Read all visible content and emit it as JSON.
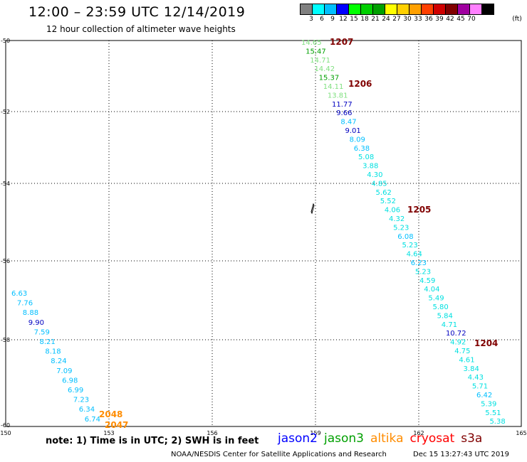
{
  "header": {
    "title": "12:00 – 23:59 UTC 12/14/2019",
    "subtitle": "12 hour collection of altimeter wave heights"
  },
  "legend": {
    "unit": "(ft)",
    "colors": [
      "#808080",
      "#00ffff",
      "#00bfff",
      "#0000ff",
      "#00ff00",
      "#00d000",
      "#00a000",
      "#ffff00",
      "#ffd000",
      "#ffa000",
      "#ff4000",
      "#d00000",
      "#800000",
      "#a000a0",
      "#ff80ff",
      "#000000"
    ],
    "labels": [
      "3",
      "6",
      "9",
      "12",
      "15",
      "18",
      "21",
      "24",
      "27",
      "30",
      "33",
      "36",
      "39",
      "42",
      "45",
      "70"
    ]
  },
  "map": {
    "x_ticks": [
      "150",
      "153",
      "156",
      "159",
      "162",
      "165"
    ],
    "y_ticks": [
      "-50",
      "-52",
      "-54",
      "-56",
      "-58",
      "-60"
    ],
    "track_left": [
      {
        "v": "6.63",
        "c": "#00bfff"
      },
      {
        "v": "7.76",
        "c": "#00bfff"
      },
      {
        "v": "8.88",
        "c": "#00bfff"
      },
      {
        "v": "9.90",
        "c": "#0000c0"
      },
      {
        "v": "7.59",
        "c": "#00bfff"
      },
      {
        "v": "8.21",
        "c": "#00bfff"
      },
      {
        "v": "8.18",
        "c": "#00bfff"
      },
      {
        "v": "8.24",
        "c": "#00bfff"
      },
      {
        "v": "7.09",
        "c": "#00bfff"
      },
      {
        "v": "6.98",
        "c": "#00bfff"
      },
      {
        "v": "6.99",
        "c": "#00bfff"
      },
      {
        "v": "7.23",
        "c": "#00bfff"
      },
      {
        "v": "6.34",
        "c": "#00bfff"
      },
      {
        "v": "6.74",
        "c": "#00bfff"
      }
    ],
    "track_right": [
      {
        "v": "14.65",
        "c": "#80e080"
      },
      {
        "v": "15.47",
        "c": "#00a000"
      },
      {
        "v": "14.71",
        "c": "#80e080"
      },
      {
        "v": "14.42",
        "c": "#80e080"
      },
      {
        "v": "15.37",
        "c": "#00a000"
      },
      {
        "v": "14.11",
        "c": "#80e080"
      },
      {
        "v": "13.81",
        "c": "#80e080"
      },
      {
        "v": "11.77",
        "c": "#0000c0"
      },
      {
        "v": "9.66",
        "c": "#0000c0"
      },
      {
        "v": "8.47",
        "c": "#00bfff"
      },
      {
        "v": "9.01",
        "c": "#0000c0"
      },
      {
        "v": "8.09",
        "c": "#00bfff"
      },
      {
        "v": "6.38",
        "c": "#00bfff"
      },
      {
        "v": "5.08",
        "c": "#00e0e0"
      },
      {
        "v": "3.88",
        "c": "#00e0e0"
      },
      {
        "v": "4.30",
        "c": "#00e0e0"
      },
      {
        "v": "4.85",
        "c": "#00e0e0"
      },
      {
        "v": "5.62",
        "c": "#00e0e0"
      },
      {
        "v": "5.52",
        "c": "#00e0e0"
      },
      {
        "v": "4.06",
        "c": "#00e0e0"
      },
      {
        "v": "4.32",
        "c": "#00e0e0"
      },
      {
        "v": "5.23",
        "c": "#00e0e0"
      },
      {
        "v": "6.08",
        "c": "#00bfff"
      },
      {
        "v": "5.23",
        "c": "#00e0e0"
      },
      {
        "v": "4.64",
        "c": "#00e0e0"
      },
      {
        "v": "6.23",
        "c": "#00bfff"
      },
      {
        "v": "5.23",
        "c": "#00e0e0"
      },
      {
        "v": "4.59",
        "c": "#00e0e0"
      },
      {
        "v": "4.04",
        "c": "#00e0e0"
      },
      {
        "v": "5.49",
        "c": "#00e0e0"
      },
      {
        "v": "5.80",
        "c": "#00e0e0"
      },
      {
        "v": "5.84",
        "c": "#00e0e0"
      },
      {
        "v": "4.71",
        "c": "#00e0e0"
      },
      {
        "v": "10.72",
        "c": "#0000c0"
      },
      {
        "v": "4.92",
        "c": "#00e0e0"
      },
      {
        "v": "4.75",
        "c": "#00e0e0"
      },
      {
        "v": "4.61",
        "c": "#00e0e0"
      },
      {
        "v": "3.84",
        "c": "#00e0e0"
      },
      {
        "v": "4.43",
        "c": "#00e0e0"
      },
      {
        "v": "5.71",
        "c": "#00e0e0"
      },
      {
        "v": "6.42",
        "c": "#00bfff"
      },
      {
        "v": "5.39",
        "c": "#00e0e0"
      },
      {
        "v": "5.51",
        "c": "#00e0e0"
      },
      {
        "v": "5.38",
        "c": "#00e0e0"
      }
    ],
    "pass_times": [
      {
        "t": "1207",
        "c": "#800000"
      },
      {
        "t": "1206",
        "c": "#800000"
      },
      {
        "t": "1205",
        "c": "#800000"
      },
      {
        "t": "1204",
        "c": "#800000"
      },
      {
        "t": "2048",
        "c": "#ff8c00"
      },
      {
        "t": "2047",
        "c": "#ff8c00"
      }
    ]
  },
  "note": "note: 1) Time is in UTC; 2) SWH is in feet",
  "satellites": [
    {
      "name": "jason2",
      "color": "#0000ff"
    },
    {
      "name": "jason3",
      "color": "#00a000"
    },
    {
      "name": "altika",
      "color": "#ff8c00"
    },
    {
      "name": "cryosat",
      "color": "#ff0000"
    },
    {
      "name": "s3a",
      "color": "#800000"
    }
  ],
  "footer": "NOAA/NESDIS Center for Satellite Applications and Research",
  "timestamp": "Dec 15 13:27:43 UTC 2019"
}
